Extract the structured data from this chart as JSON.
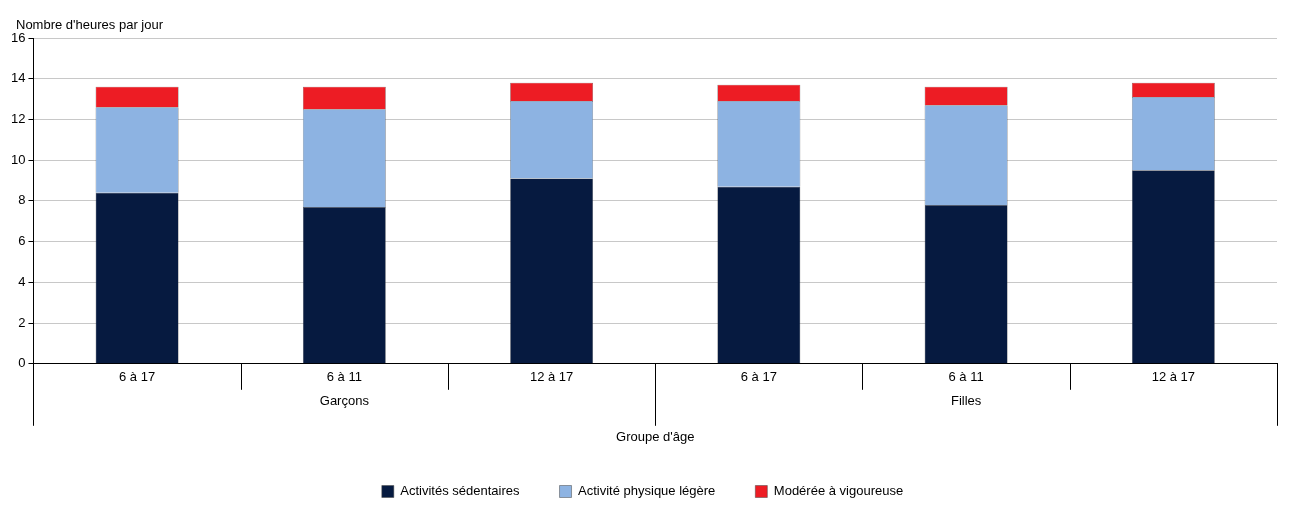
{
  "chart_data": {
    "type": "bar",
    "stacked": true,
    "ylabel": "Nombre d'heures par jour",
    "xlabel": "Groupe d'âge",
    "categories": [
      "6 à 17",
      "6 à 11",
      "12 à 17",
      "6 à 17",
      "6 à 11",
      "12 à 17"
    ],
    "annotations": [
      "Garçons",
      "Filles"
    ],
    "series": [
      {
        "name": "Activités sédentaires",
        "color": "#061a40",
        "values": [
          8.4,
          7.7,
          9.1,
          8.7,
          7.8,
          9.5
        ]
      },
      {
        "name": "Activité physique légère",
        "color": "#8db3e2",
        "values": [
          4.2,
          4.8,
          3.8,
          4.2,
          4.9,
          3.6
        ]
      },
      {
        "name": "Modérée à vigoureuse",
        "color": "#ed1c24",
        "values": [
          1.0,
          1.1,
          0.9,
          0.8,
          0.9,
          0.7
        ]
      }
    ],
    "ylim": [
      0,
      16
    ],
    "yticks": [
      0,
      2,
      4,
      6,
      8,
      10,
      12,
      14,
      16
    ],
    "grid": "y",
    "legend": "bottom"
  }
}
